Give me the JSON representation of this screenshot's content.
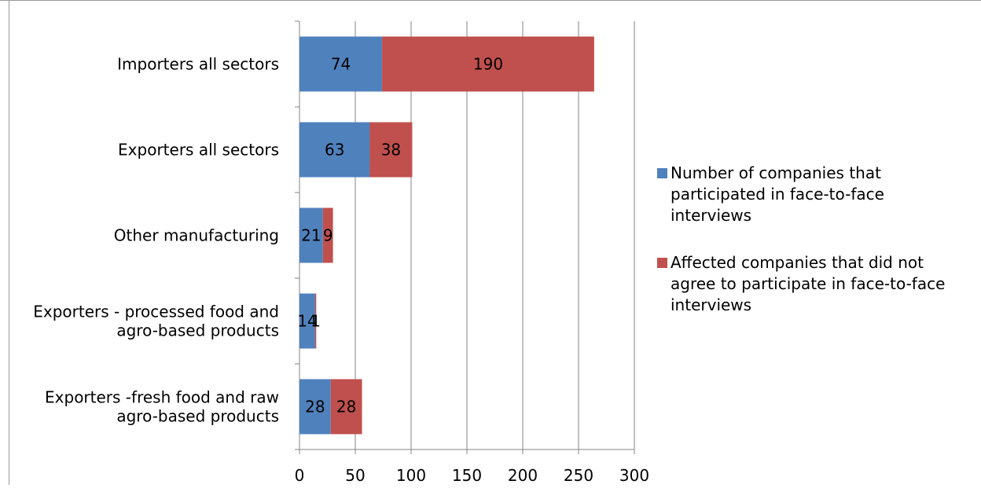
{
  "chart_data": {
    "type": "bar",
    "orientation": "horizontal",
    "stacked": true,
    "title": "",
    "xlabel": "",
    "ylabel": "",
    "xlim": [
      0,
      300
    ],
    "x_ticks": [
      "0",
      "50",
      "100",
      "150",
      "200",
      "250",
      "300"
    ],
    "grid": "vertical",
    "legend_position": "right",
    "categories": [
      [
        "Importers  all sectors"
      ],
      [
        "Exporters all sectors"
      ],
      [
        "Other manufacturing"
      ],
      [
        "Exporters - processed food and",
        "agro-based products"
      ],
      [
        "Exporters -fresh food and raw",
        "agro-based products"
      ]
    ],
    "series": [
      {
        "name": [
          "Number of companies that",
          "participated in face-to-face",
          "interviews"
        ],
        "color": "#4F81BD",
        "values": [
          74,
          63,
          21,
          14,
          28
        ]
      },
      {
        "name": [
          "Affected companies that did not",
          "agree to participate in face-to-face",
          "interviews"
        ],
        "color": "#C0504D",
        "values": [
          190,
          38,
          9,
          1,
          28
        ]
      }
    ]
  }
}
